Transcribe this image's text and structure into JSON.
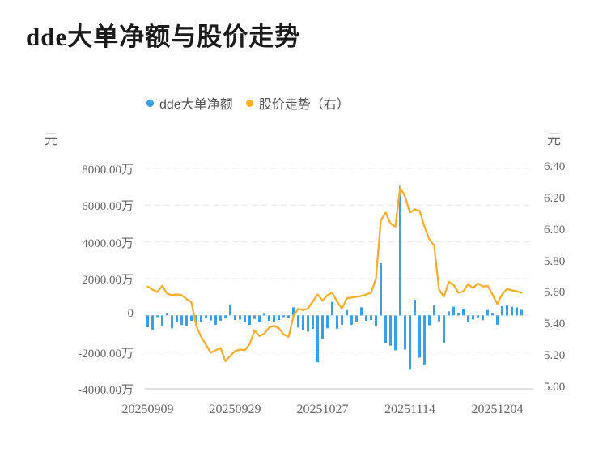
{
  "title": "dde大单净额与股价走势",
  "legend": {
    "items": [
      {
        "label": "dde大单净额",
        "color": "#3B9FE8"
      },
      {
        "label": "股价走势（右）",
        "color": "#FBAE2E"
      }
    ]
  },
  "left_axis": {
    "unit": "元",
    "tick_labels": [
      "8000.00万",
      "6000.00万",
      "4000.00万",
      "2000.00万",
      "0",
      "-2000.00万",
      "-4000.00万"
    ],
    "tick_values_wan": [
      8000,
      6000,
      4000,
      2000,
      0,
      -2000,
      -4000
    ],
    "range_wan": [
      -4000,
      8000
    ]
  },
  "right_axis": {
    "unit": "元",
    "tick_labels": [
      "6.40",
      "6.20",
      "6.00",
      "5.80",
      "5.60",
      "5.40",
      "5.20",
      "5.00"
    ],
    "tick_values": [
      6.4,
      6.2,
      6.0,
      5.8,
      5.6,
      5.4,
      5.2,
      5.0
    ],
    "range": [
      5.0,
      6.4
    ]
  },
  "x_axis": {
    "tick_labels": [
      "20250909",
      "20250929",
      "20251027",
      "20251114",
      "20251204"
    ],
    "tick_indices": [
      0,
      18,
      36,
      54,
      72
    ]
  },
  "chart_data": {
    "type": "combo",
    "x_count": 78,
    "x_tick_labels": [
      "20250909",
      "20250929",
      "20251027",
      "20251114",
      "20251204"
    ],
    "x_tick_indices": [
      0,
      18,
      36,
      54,
      72
    ],
    "grid": "horizontal-dashed",
    "legend_position": "top-center",
    "series": [
      {
        "name": "dde大单净额",
        "type": "bar",
        "axis": "left",
        "unit": "万元",
        "color": "#3B9FE8",
        "ylim_wan": [
          -4000,
          8000
        ],
        "values_wan": [
          -650,
          -800,
          -80,
          -580,
          100,
          -700,
          -370,
          -520,
          -590,
          -290,
          -510,
          -370,
          -120,
          -280,
          -510,
          -290,
          -140,
          600,
          -250,
          -220,
          -370,
          -515,
          -190,
          -340,
          80,
          -290,
          -340,
          -250,
          -90,
          -160,
          440,
          -660,
          -810,
          -880,
          -740,
          -2550,
          -1300,
          -700,
          730,
          -730,
          -510,
          290,
          -510,
          -370,
          440,
          -290,
          -250,
          -590,
          2830,
          -1500,
          -1650,
          -1900,
          7050,
          -1860,
          -2960,
          850,
          -2300,
          -2670,
          -540,
          560,
          -320,
          -1500,
          220,
          470,
          150,
          370,
          -370,
          -220,
          -110,
          -260,
          290,
          130,
          -510,
          510,
          560,
          470,
          440,
          300
        ]
      },
      {
        "name": "股价走势",
        "type": "line",
        "axis": "right",
        "unit": "元",
        "color": "#FBAE2E",
        "ylim": [
          5.0,
          6.4
        ],
        "values": [
          5.65,
          5.63,
          5.615,
          5.655,
          5.605,
          5.595,
          5.6,
          5.595,
          5.57,
          5.55,
          5.4,
          5.33,
          5.28,
          5.23,
          5.245,
          5.26,
          5.175,
          5.21,
          5.24,
          5.25,
          5.245,
          5.285,
          5.37,
          5.335,
          5.35,
          5.39,
          5.4,
          5.385,
          5.345,
          5.33,
          5.46,
          5.51,
          5.5,
          5.51,
          5.555,
          5.6,
          5.56,
          5.595,
          5.61,
          5.555,
          5.51,
          5.575,
          5.58,
          5.585,
          5.59,
          5.6,
          5.61,
          5.7,
          6.07,
          6.12,
          6.05,
          6.03,
          6.28,
          6.22,
          6.12,
          6.14,
          6.13,
          6.03,
          5.95,
          5.91,
          5.63,
          5.585,
          5.68,
          5.66,
          5.61,
          5.62,
          5.665,
          5.64,
          5.67,
          5.65,
          5.655,
          5.6,
          5.54,
          5.6,
          5.635,
          5.625,
          5.62,
          5.61
        ]
      }
    ]
  },
  "colors": {
    "bar": "#3B9FE8",
    "line": "#FBAE2E",
    "grid": "#e8e8e8",
    "axis_bottom": "#d9d9d9",
    "text": "#666666",
    "title": "#1b1b1b"
  }
}
